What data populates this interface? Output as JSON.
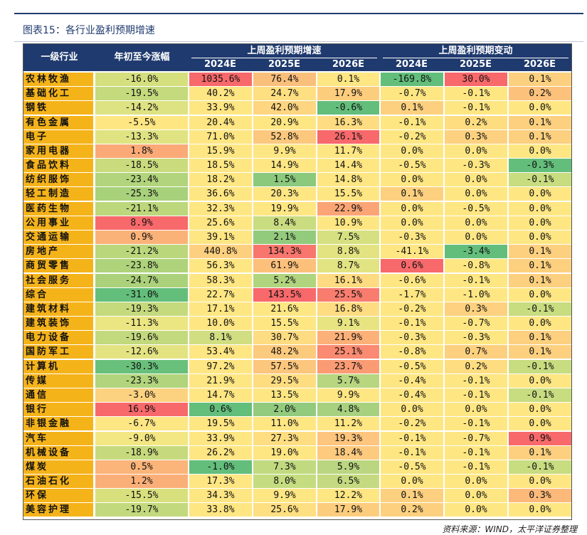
{
  "title": "图表15：各行业盈利预期增速",
  "source": "资料来源：WIND，太平洋证券整理",
  "header": {
    "industry": "一级行业",
    "ytd": "年初至今涨幅",
    "group_growth": "上周盈利预期增速",
    "group_change": "上周盈利预期变动",
    "years": [
      "2024E",
      "2025E",
      "2026E"
    ]
  },
  "rows": [
    {
      "name": "农林牧渔",
      "ytd": "-16.0%",
      "g24": "1035.6%",
      "g25": "76.4%",
      "g26": "0.1%",
      "c24": "-169.8%",
      "c25": "30.0%",
      "c26": "0.1%",
      "colors": [
        "#d5df7e",
        "#f8696b",
        "#fbbf7c",
        "#fee683",
        "#63be7b",
        "#f8696b",
        "#fdd07f"
      ]
    },
    {
      "name": "基础化工",
      "ytd": "-19.5%",
      "g24": "40.2%",
      "g25": "24.7%",
      "g26": "17.9%",
      "c24": "-0.7%",
      "c25": "-0.1%",
      "c26": "0.2%",
      "colors": [
        "#c4da7d",
        "#fee683",
        "#fedf81",
        "#fdcd7e",
        "#fee683",
        "#fee683",
        "#fcc27c"
      ]
    },
    {
      "name": "钢铁",
      "ytd": "-14.2%",
      "g24": "33.9%",
      "g25": "42.0%",
      "g26": "-0.6%",
      "c24": "0.1%",
      "c25": "-0.1%",
      "c26": "0.0%",
      "colors": [
        "#dde282",
        "#fee683",
        "#fed580",
        "#63be7b",
        "#fdd07f",
        "#fee683",
        "#fee683"
      ]
    },
    {
      "name": "有色金属",
      "ytd": "-5.5%",
      "g24": "20.4%",
      "g25": "20.9%",
      "g26": "16.3%",
      "c24": "-0.1%",
      "c25": "0.2%",
      "c26": "0.1%",
      "colors": [
        "#fee683",
        "#fee683",
        "#fee683",
        "#fedc81",
        "#fee683",
        "#fedd81",
        "#fdd07f"
      ]
    },
    {
      "name": "电子",
      "ytd": "-13.3%",
      "g24": "71.0%",
      "g25": "52.8%",
      "g26": "26.1%",
      "c24": "-0.2%",
      "c25": "0.3%",
      "c26": "0.1%",
      "colors": [
        "#e0e382",
        "#fee683",
        "#fcc87d",
        "#f8696b",
        "#fee683",
        "#fdd17f",
        "#fdd07f"
      ]
    },
    {
      "name": "家用电器",
      "ytd": "1.8%",
      "g24": "15.9%",
      "g25": "9.9%",
      "g26": "11.7%",
      "c24": "0.0%",
      "c25": "0.0%",
      "c26": "0.0%",
      "colors": [
        "#fbaa77",
        "#fee683",
        "#fee683",
        "#fee683",
        "#fee683",
        "#fee683",
        "#fee683"
      ]
    },
    {
      "name": "食品饮料",
      "ytd": "-18.5%",
      "g24": "18.5%",
      "g25": "14.9%",
      "g26": "14.4%",
      "c24": "-0.5%",
      "c25": "-0.3%",
      "c26": "-0.3%",
      "colors": [
        "#c9db7d",
        "#fee683",
        "#fee683",
        "#fee683",
        "#fee683",
        "#fee683",
        "#63be7b"
      ]
    },
    {
      "name": "纺织服饰",
      "ytd": "-23.4%",
      "g24": "18.2%",
      "g25": "1.5%",
      "g26": "14.8%",
      "c24": "0.0%",
      "c25": "0.0%",
      "c26": "-0.1%",
      "colors": [
        "#b1d47c",
        "#fee683",
        "#8bc97d",
        "#fee683",
        "#fee683",
        "#fee683",
        "#c8dc80"
      ]
    },
    {
      "name": "轻工制造",
      "ytd": "-25.3%",
      "g24": "36.6%",
      "g25": "20.3%",
      "g26": "15.5%",
      "c24": "0.1%",
      "c25": "0.0%",
      "c26": "0.0%",
      "colors": [
        "#a8d17b",
        "#fee683",
        "#fee683",
        "#fee683",
        "#fdd07f",
        "#fee683",
        "#fee683"
      ]
    },
    {
      "name": "医药生物",
      "ytd": "-21.1%",
      "g24": "32.3%",
      "g25": "19.9%",
      "g26": "22.9%",
      "c24": "0.0%",
      "c25": "-0.5%",
      "c26": "0.0%",
      "colors": [
        "#bcd77c",
        "#fee683",
        "#fee683",
        "#fba576",
        "#fee683",
        "#fee683",
        "#fee683"
      ]
    },
    {
      "name": "公用事业",
      "ytd": "8.9%",
      "g24": "25.6%",
      "g25": "8.4%",
      "g26": "10.9%",
      "c24": "0.0%",
      "c25": "0.0%",
      "c26": "0.0%",
      "colors": [
        "#f8696b",
        "#fee683",
        "#c9dc80",
        "#fee683",
        "#fee683",
        "#fee683",
        "#fee683"
      ]
    },
    {
      "name": "交通运输",
      "ytd": "0.9%",
      "g24": "39.1%",
      "g25": "2.1%",
      "g26": "7.5%",
      "c24": "-0.3%",
      "c25": "0.0%",
      "c26": "0.0%",
      "colors": [
        "#fbb279",
        "#fee683",
        "#93cb7d",
        "#d6e081",
        "#fee683",
        "#fee683",
        "#fee683"
      ]
    },
    {
      "name": "房地产",
      "ytd": "-21.2%",
      "g24": "440.8%",
      "g25": "134.3%",
      "g26": "8.8%",
      "c24": "-41.1%",
      "c25": "-3.4%",
      "c26": "0.1%",
      "colors": [
        "#bbd77c",
        "#fdd07f",
        "#f8766d",
        "#e3e382",
        "#fee683",
        "#63be7b",
        "#fdd07f"
      ]
    },
    {
      "name": "商贸零售",
      "ytd": "-23.8%",
      "g24": "56.3%",
      "g25": "61.9%",
      "g26": "8.7%",
      "c24": "0.6%",
      "c25": "-0.8%",
      "c26": "0.1%",
      "colors": [
        "#aed37b",
        "#fee683",
        "#fcc07b",
        "#e2e382",
        "#f8696b",
        "#fee683",
        "#fdd07f"
      ]
    },
    {
      "name": "社会服务",
      "ytd": "-24.7%",
      "g24": "58.3%",
      "g25": "5.2%",
      "g26": "16.1%",
      "c24": "-0.6%",
      "c25": "-0.1%",
      "c26": "0.1%",
      "colors": [
        "#abd27b",
        "#fee683",
        "#b1d47f",
        "#fedb81",
        "#fee683",
        "#fee683",
        "#fdd07f"
      ]
    },
    {
      "name": "综合",
      "ytd": "-31.0%",
      "g24": "22.7%",
      "g25": "143.5%",
      "g26": "25.5%",
      "c24": "-1.7%",
      "c25": "-1.0%",
      "c26": "0.0%",
      "colors": [
        "#63be7b",
        "#fee683",
        "#f8696b",
        "#f97d6f",
        "#fee683",
        "#fee683",
        "#fee683"
      ]
    },
    {
      "name": "建筑材料",
      "ytd": "-19.3%",
      "g24": "17.1%",
      "g25": "21.6%",
      "g26": "16.8%",
      "c24": "-0.2%",
      "c25": "0.3%",
      "c26": "-0.1%",
      "colors": [
        "#c5da7d",
        "#fee683",
        "#fee683",
        "#fedc81",
        "#fee683",
        "#fdd17f",
        "#c8dc80"
      ]
    },
    {
      "name": "建筑装饰",
      "ytd": "-11.3%",
      "g24": "10.0%",
      "g25": "15.5%",
      "g26": "9.1%",
      "c24": "-0.1%",
      "c25": "-0.7%",
      "c26": "0.0%",
      "colors": [
        "#ebe582",
        "#fee683",
        "#fee683",
        "#e8e482",
        "#fee683",
        "#fee683",
        "#fee683"
      ]
    },
    {
      "name": "电力设备",
      "ytd": "-19.6%",
      "g24": "8.1%",
      "g25": "30.7%",
      "g26": "21.9%",
      "c24": "-0.3%",
      "c25": "-0.3%",
      "c26": "0.1%",
      "colors": [
        "#c3d97d",
        "#d1de81",
        "#fedc81",
        "#fcb178",
        "#fee683",
        "#fee683",
        "#fdd07f"
      ]
    },
    {
      "name": "国防军工",
      "ytd": "-12.6%",
      "g24": "53.4%",
      "g25": "48.2%",
      "g26": "25.1%",
      "c24": "-0.8%",
      "c25": "0.7%",
      "c26": "0.1%",
      "colors": [
        "#e4e382",
        "#fee683",
        "#fcca7d",
        "#fa8a71",
        "#fee683",
        "#fdd07f",
        "#fdd07f"
      ]
    },
    {
      "name": "计算机",
      "ytd": "-30.3%",
      "g24": "97.2%",
      "g25": "57.5%",
      "g26": "23.7%",
      "c24": "-0.5%",
      "c25": "0.2%",
      "c26": "-0.1%",
      "colors": [
        "#69c07b",
        "#fee683",
        "#fcc67d",
        "#fb9b74",
        "#fee683",
        "#fedd81",
        "#c8dc80"
      ]
    },
    {
      "name": "传媒",
      "ytd": "-23.3%",
      "g24": "21.9%",
      "g25": "29.5%",
      "g26": "5.7%",
      "c24": "-0.4%",
      "c25": "-0.1%",
      "c26": "0.0%",
      "colors": [
        "#b1d47c",
        "#fee683",
        "#fedd81",
        "#b8d57f",
        "#fee683",
        "#fee683",
        "#fee683"
      ]
    },
    {
      "name": "通信",
      "ytd": "-3.0%",
      "g24": "14.7%",
      "g25": "13.5%",
      "g26": "9.9%",
      "c24": "-0.4%",
      "c25": "-0.1%",
      "c26": "-0.1%",
      "colors": [
        "#fcd280",
        "#fee683",
        "#fee683",
        "#fee683",
        "#fee683",
        "#fee683",
        "#c8dc80"
      ]
    },
    {
      "name": "银行",
      "ytd": "16.9%",
      "g24": "0.6%",
      "g25": "2.0%",
      "g26": "4.8%",
      "c24": "0.0%",
      "c25": "0.0%",
      "c26": "0.0%",
      "colors": [
        "#f8696b",
        "#63be7b",
        "#92cb7d",
        "#a8d17f",
        "#fee683",
        "#fee683",
        "#fee683"
      ]
    },
    {
      "name": "非银金融",
      "ytd": "-6.7%",
      "g24": "19.5%",
      "g25": "11.0%",
      "g26": "11.2%",
      "c24": "-0.2%",
      "c25": "-0.1%",
      "c26": "0.0%",
      "colors": [
        "#fde684",
        "#fee683",
        "#fee683",
        "#fee683",
        "#fee683",
        "#fee683",
        "#fee683"
      ]
    },
    {
      "name": "汽车",
      "ytd": "-9.0%",
      "g24": "33.9%",
      "g25": "27.3%",
      "g26": "19.3%",
      "c24": "-0.1%",
      "c25": "-0.7%",
      "c26": "0.9%",
      "colors": [
        "#f3e783",
        "#fee683",
        "#fede81",
        "#fdc57d",
        "#fee683",
        "#fee683",
        "#f8696b"
      ]
    },
    {
      "name": "机械设备",
      "ytd": "-18.9%",
      "g24": "26.2%",
      "g25": "19.0%",
      "g26": "18.4%",
      "c24": "-0.1%",
      "c25": "-0.1%",
      "c26": "0.1%",
      "colors": [
        "#c6da7d",
        "#fee683",
        "#fee683",
        "#fdca7e",
        "#fee683",
        "#fee683",
        "#fdd07f"
      ]
    },
    {
      "name": "煤炭",
      "ytd": "0.5%",
      "g24": "-1.0%",
      "g25": "7.3%",
      "g26": "5.9%",
      "c24": "-0.5%",
      "c25": "-0.1%",
      "c26": "-0.1%",
      "colors": [
        "#fbb479",
        "#63be7b",
        "#c1da80",
        "#bad680",
        "#fee683",
        "#fee683",
        "#c8dc80"
      ]
    },
    {
      "name": "石油石化",
      "ytd": "1.2%",
      "g24": "17.3%",
      "g25": "8.0%",
      "g26": "6.5%",
      "c24": "0.0%",
      "c25": "0.0%",
      "c26": "0.0%",
      "colors": [
        "#fbaf78",
        "#fee683",
        "#c6dc80",
        "#c5da80",
        "#fee683",
        "#fee683",
        "#fee683"
      ]
    },
    {
      "name": "环保",
      "ytd": "-15.5%",
      "g24": "34.3%",
      "g25": "9.9%",
      "g26": "12.2%",
      "c24": "0.1%",
      "c25": "0.0%",
      "c26": "0.3%",
      "colors": [
        "#d8e07e",
        "#fee683",
        "#fee683",
        "#fee683",
        "#fdd07f",
        "#fee683",
        "#fcb97a"
      ]
    },
    {
      "name": "美容护理",
      "ytd": "-19.7%",
      "g24": "33.8%",
      "g25": "25.6%",
      "g26": "17.9%",
      "c24": "0.2%",
      "c25": "0.0%",
      "c26": "0.0%",
      "colors": [
        "#c3d97d",
        "#fee683",
        "#fedf81",
        "#fdcd7e",
        "#fdd07f",
        "#fee683",
        "#fee683"
      ]
    }
  ]
}
